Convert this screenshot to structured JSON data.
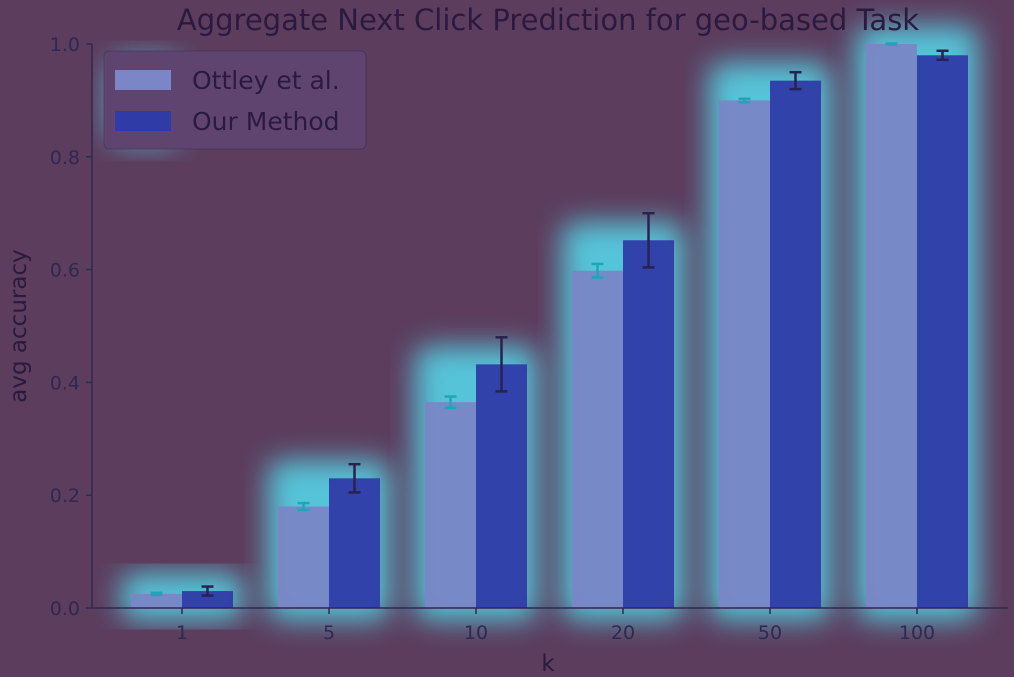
{
  "chart_data": {
    "type": "bar",
    "title": "Aggregate Next Click Prediction for geo-based Task",
    "xlabel": "k",
    "ylabel": "avg accuracy",
    "categories": [
      "1",
      "5",
      "10",
      "20",
      "50",
      "100"
    ],
    "ylim": [
      0,
      1.0
    ],
    "yticks": [
      "0.0",
      "0.2",
      "0.4",
      "0.6",
      "0.8",
      "1.0"
    ],
    "series": [
      {
        "name": "Ottley et al.",
        "values": [
          0.025,
          0.18,
          0.365,
          0.598,
          0.9,
          1.0
        ],
        "errors": [
          0.002,
          0.006,
          0.01,
          0.012,
          0.003,
          0.001
        ],
        "color": "#7a86c6"
      },
      {
        "name": "Our Method",
        "values": [
          0.03,
          0.23,
          0.432,
          0.652,
          0.935,
          0.98
        ],
        "errors": [
          0.008,
          0.025,
          0.048,
          0.048,
          0.015,
          0.008
        ],
        "color": "#2f3ca8"
      }
    ],
    "legend_position": "top-left",
    "grid": false,
    "overlay": "heatmap glow"
  }
}
